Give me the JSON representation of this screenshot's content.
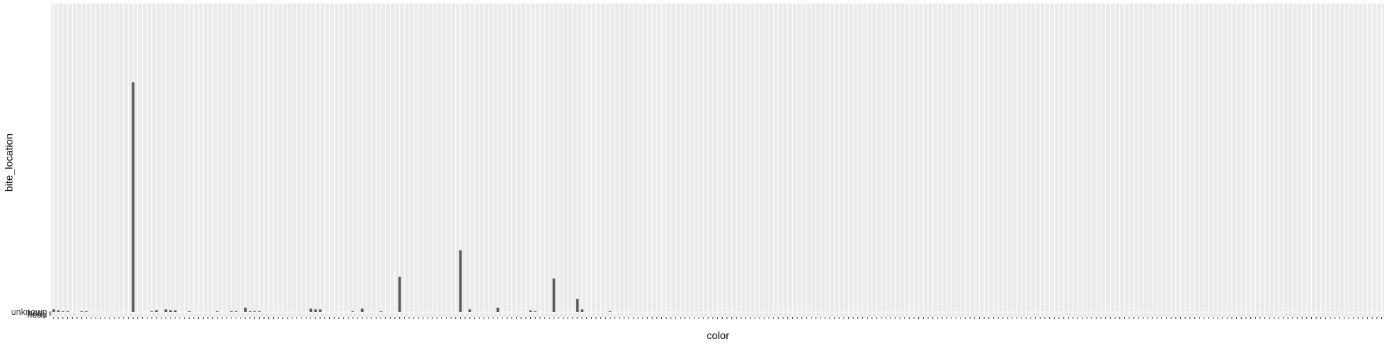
{
  "chart_data": {
    "type": "bar",
    "xlabel": "color",
    "ylabel": "bite_location",
    "y_tick_labels": [
      "unknown",
      "body",
      "head"
    ],
    "grid": true,
    "legend": "none",
    "bar_color": "#595959",
    "panel_background": "#ebebeb",
    "gridline_color": "#ffffff",
    "category_count": 285,
    "values": [
      3,
      2,
      1,
      1,
      0,
      0,
      1,
      1,
      0,
      0,
      0,
      0,
      0,
      0,
      0,
      0,
      0,
      260,
      0,
      0,
      0,
      1,
      2,
      0,
      3,
      2,
      2,
      0,
      0,
      1,
      0,
      0,
      0,
      0,
      0,
      1,
      0,
      0,
      1,
      1,
      0,
      5,
      1,
      1,
      1,
      0,
      0,
      0,
      0,
      0,
      0,
      0,
      0,
      0,
      0,
      4,
      3,
      3,
      0,
      0,
      0,
      0,
      0,
      0,
      1,
      0,
      4,
      0,
      0,
      0,
      1,
      0,
      0,
      0,
      40,
      0,
      0,
      0,
      0,
      0,
      0,
      0,
      0,
      0,
      0,
      0,
      0,
      70,
      0,
      3,
      0,
      0,
      0,
      0,
      0,
      5,
      0,
      0,
      0,
      0,
      0,
      0,
      2,
      1,
      0,
      0,
      0,
      38,
      0,
      0,
      0,
      0,
      15,
      3,
      0,
      0,
      0,
      0,
      0,
      1,
      0,
      0,
      0,
      0,
      0,
      0,
      0,
      0,
      0,
      0,
      0,
      0,
      0,
      0,
      0,
      0,
      0,
      0,
      0,
      0,
      0,
      0,
      0,
      0,
      0,
      0,
      0,
      0,
      0,
      0,
      0,
      0,
      0,
      0,
      0,
      0,
      0,
      0,
      0,
      0,
      0,
      0,
      0,
      0,
      0,
      0,
      0,
      0,
      0,
      0,
      0,
      0,
      0,
      0,
      0,
      0,
      0,
      0,
      0,
      0,
      0,
      0,
      0,
      0,
      0,
      0,
      0,
      0,
      0,
      0,
      0,
      0,
      0,
      0,
      0,
      0,
      0,
      0,
      0,
      0,
      0,
      0,
      0,
      0,
      0,
      0,
      0,
      0,
      0,
      0,
      0,
      0,
      0,
      0,
      0,
      0,
      0,
      0,
      0,
      0,
      0,
      0,
      0,
      0,
      0,
      0,
      0,
      0,
      0,
      0,
      0,
      0,
      0,
      0,
      0,
      0,
      0,
      0,
      0,
      0,
      0,
      0,
      0,
      0,
      0,
      0,
      0,
      0,
      0,
      0,
      0,
      0,
      0,
      0,
      0,
      0,
      0,
      0,
      0,
      0,
      0,
      0,
      0,
      0,
      0,
      0,
      0,
      0,
      0,
      0,
      0,
      0,
      0,
      0,
      0,
      0,
      0,
      0,
      0,
      0,
      0,
      0,
      0,
      0,
      0
    ],
    "ylim": [
      0,
      350
    ]
  }
}
